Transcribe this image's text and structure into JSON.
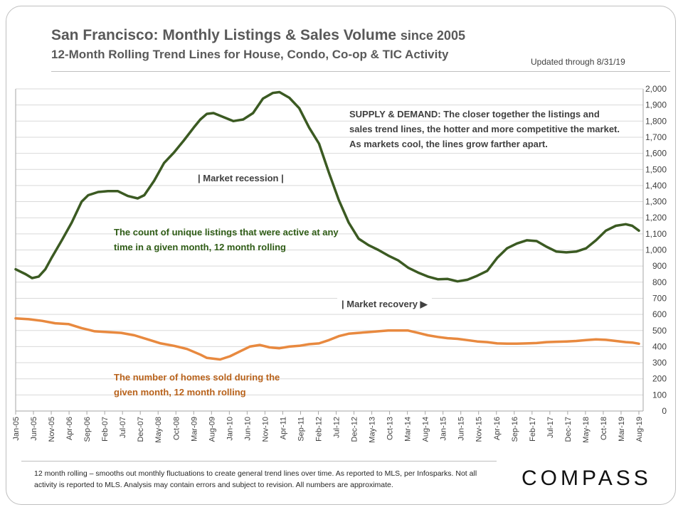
{
  "header": {
    "title_main": "San Francisco: Monthly Listings & Sales Volume",
    "title_since": "since 2005",
    "subtitle": "12-Month Rolling Trend Lines for House, Condo, Co-op & TIC Activity",
    "updated": "Updated through 8/31/19"
  },
  "annotations": {
    "supply_demand": "SUPPLY & DEMAND: The closer together the listings and sales trend lines, the hotter and more competitive the market. As markets cool, the lines grow farther apart.",
    "listings_note": "The count of unique listings that were active at any time in a given month, 12 month rolling",
    "sold_note": "The number of homes sold during the given month, 12 month rolling",
    "recession": "| Market recession |",
    "recovery": "| Market recovery ▶"
  },
  "footer": {
    "note": "12 month rolling – smooths out monthly fluctuations to create general trend lines over time. As reported to MLS, per Infosparks. Not all activity is reported to MLS. Analysis may contain errors and subject to revision. All numbers are approximate.",
    "logo": "COMPASS"
  },
  "colors": {
    "listings": "#3b5a22",
    "sales": "#e8893f",
    "grid": "#d9d9d9",
    "axis_text": "#404040"
  },
  "chart_data": {
    "type": "line",
    "title": "San Francisco: Monthly Listings & Sales Volume since 2005",
    "xlabel": "",
    "ylabel": "",
    "ylim": [
      0,
      2000
    ],
    "yticks": [
      0,
      100,
      200,
      300,
      400,
      500,
      600,
      700,
      800,
      900,
      1000,
      1100,
      1200,
      1300,
      1400,
      1500,
      1600,
      1700,
      1800,
      1900,
      2000
    ],
    "y_axis_side": "right",
    "x_start": "Jan-05",
    "x_end": "Aug-19",
    "x_tick_labels": [
      "Jan-05",
      "Jun-05",
      "Nov-05",
      "Apr-06",
      "Sep-06",
      "Feb-07",
      "Jul-07",
      "Dec-07",
      "May-08",
      "Oct-08",
      "Mar-09",
      "Aug-09",
      "Jan-10",
      "Jun-10",
      "Nov-10",
      "Apr-11",
      "Sep-11",
      "Feb-12",
      "Jul-12",
      "Dec-12",
      "May-13",
      "Oct-13",
      "Mar-14",
      "Aug-14",
      "Jan-15",
      "Jun-15",
      "Nov-15",
      "Apr-16",
      "Sep-16",
      "Feb-17",
      "Jul-17",
      "Dec-17",
      "May-18",
      "Oct-18",
      "Mar-19",
      "Aug-19"
    ],
    "series": [
      {
        "name": "Active listings (12 month rolling)",
        "color": "#3b5a22",
        "points": [
          [
            0,
            880
          ],
          [
            3,
            850
          ],
          [
            5,
            825
          ],
          [
            7,
            835
          ],
          [
            9,
            880
          ],
          [
            11,
            955
          ],
          [
            14,
            1060
          ],
          [
            17,
            1170
          ],
          [
            20,
            1300
          ],
          [
            22,
            1340
          ],
          [
            25,
            1360
          ],
          [
            28,
            1365
          ],
          [
            31,
            1365
          ],
          [
            34,
            1335
          ],
          [
            37,
            1320
          ],
          [
            39,
            1340
          ],
          [
            42,
            1430
          ],
          [
            45,
            1540
          ],
          [
            48,
            1605
          ],
          [
            51,
            1680
          ],
          [
            54,
            1760
          ],
          [
            56,
            1810
          ],
          [
            58,
            1845
          ],
          [
            60,
            1850
          ],
          [
            63,
            1825
          ],
          [
            66,
            1800
          ],
          [
            69,
            1810
          ],
          [
            72,
            1850
          ],
          [
            75,
            1940
          ],
          [
            78,
            1975
          ],
          [
            80,
            1980
          ],
          [
            83,
            1945
          ],
          [
            86,
            1880
          ],
          [
            89,
            1760
          ],
          [
            92,
            1660
          ],
          [
            95,
            1480
          ],
          [
            98,
            1310
          ],
          [
            101,
            1170
          ],
          [
            104,
            1070
          ],
          [
            107,
            1030
          ],
          [
            110,
            1000
          ],
          [
            113,
            965
          ],
          [
            116,
            935
          ],
          [
            119,
            890
          ],
          [
            122,
            860
          ],
          [
            125,
            835
          ],
          [
            128,
            818
          ],
          [
            131,
            820
          ],
          [
            134,
            805
          ],
          [
            137,
            815
          ],
          [
            140,
            840
          ],
          [
            143,
            870
          ],
          [
            146,
            950
          ],
          [
            149,
            1010
          ],
          [
            152,
            1040
          ],
          [
            155,
            1060
          ],
          [
            158,
            1055
          ],
          [
            161,
            1020
          ],
          [
            164,
            990
          ],
          [
            167,
            985
          ],
          [
            170,
            990
          ],
          [
            173,
            1010
          ],
          [
            176,
            1060
          ],
          [
            179,
            1120
          ],
          [
            182,
            1150
          ],
          [
            185,
            1160
          ],
          [
            187,
            1150
          ],
          [
            189,
            1120
          ]
        ]
      },
      {
        "name": "Homes sold (12 month rolling)",
        "color": "#e8893f",
        "points": [
          [
            0,
            575
          ],
          [
            4,
            570
          ],
          [
            8,
            560
          ],
          [
            12,
            545
          ],
          [
            16,
            540
          ],
          [
            20,
            515
          ],
          [
            24,
            495
          ],
          [
            28,
            490
          ],
          [
            32,
            485
          ],
          [
            36,
            470
          ],
          [
            40,
            445
          ],
          [
            44,
            420
          ],
          [
            48,
            405
          ],
          [
            52,
            385
          ],
          [
            56,
            350
          ],
          [
            58,
            330
          ],
          [
            60,
            325
          ],
          [
            62,
            320
          ],
          [
            65,
            340
          ],
          [
            68,
            370
          ],
          [
            71,
            400
          ],
          [
            74,
            410
          ],
          [
            77,
            395
          ],
          [
            80,
            390
          ],
          [
            83,
            400
          ],
          [
            86,
            405
          ],
          [
            89,
            415
          ],
          [
            92,
            420
          ],
          [
            95,
            440
          ],
          [
            98,
            465
          ],
          [
            101,
            480
          ],
          [
            104,
            485
          ],
          [
            107,
            490
          ],
          [
            110,
            495
          ],
          [
            113,
            500
          ],
          [
            116,
            500
          ],
          [
            119,
            500
          ],
          [
            122,
            485
          ],
          [
            125,
            470
          ],
          [
            128,
            460
          ],
          [
            131,
            452
          ],
          [
            134,
            448
          ],
          [
            137,
            440
          ],
          [
            140,
            432
          ],
          [
            143,
            428
          ],
          [
            146,
            420
          ],
          [
            149,
            418
          ],
          [
            152,
            418
          ],
          [
            155,
            420
          ],
          [
            158,
            422
          ],
          [
            161,
            428
          ],
          [
            164,
            430
          ],
          [
            167,
            432
          ],
          [
            170,
            435
          ],
          [
            173,
            440
          ],
          [
            176,
            445
          ],
          [
            179,
            442
          ],
          [
            182,
            435
          ],
          [
            185,
            428
          ],
          [
            187,
            425
          ],
          [
            189,
            418
          ]
        ]
      }
    ],
    "x_note": "Point x values are month indices counted from Jan-05 (0) to Aug-19 (175); scaled to the plotted axis."
  }
}
